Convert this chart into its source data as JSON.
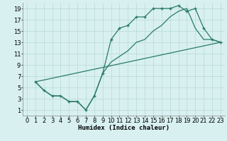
{
  "line1_x": [
    1,
    2,
    3,
    4,
    5,
    6,
    7,
    8,
    9,
    10,
    11,
    12,
    13,
    14,
    15,
    16,
    17,
    18,
    19,
    20,
    21,
    22,
    23
  ],
  "line1_y": [
    6.0,
    4.5,
    3.5,
    3.5,
    2.5,
    2.5,
    1.0,
    3.5,
    7.5,
    13.5,
    15.5,
    16.0,
    17.5,
    17.5,
    19.0,
    19.0,
    19.0,
    19.5,
    18.5,
    19.0,
    15.5,
    13.5,
    13.0
  ],
  "line2_x": [
    1,
    23
  ],
  "line2_y": [
    6.0,
    13.0
  ],
  "line3_x": [
    1,
    2,
    3,
    4,
    5,
    6,
    7,
    8,
    9,
    10,
    11,
    12,
    13,
    14,
    15,
    16,
    17,
    18,
    19,
    20,
    21,
    22,
    23
  ],
  "line3_y": [
    6.0,
    4.5,
    3.5,
    3.5,
    2.5,
    2.5,
    1.0,
    3.5,
    7.5,
    9.5,
    10.5,
    11.5,
    13.0,
    13.5,
    15.0,
    16.0,
    17.5,
    18.5,
    19.0,
    15.5,
    13.5,
    13.5,
    13.0
  ],
  "line_color": "#2a7a6a",
  "bg_color": "#d8f0f0",
  "grid_color": "#b8d8d8",
  "xlabel": "Humidex (Indice chaleur)",
  "xlim": [
    -0.5,
    23.5
  ],
  "ylim": [
    0,
    20
  ],
  "xticks": [
    0,
    1,
    2,
    3,
    4,
    5,
    6,
    7,
    8,
    9,
    10,
    11,
    12,
    13,
    14,
    15,
    16,
    17,
    18,
    19,
    20,
    21,
    22,
    23
  ],
  "yticks": [
    1,
    3,
    5,
    7,
    9,
    11,
    13,
    15,
    17,
    19
  ],
  "label_fontsize": 6.5,
  "tick_fontsize": 6
}
